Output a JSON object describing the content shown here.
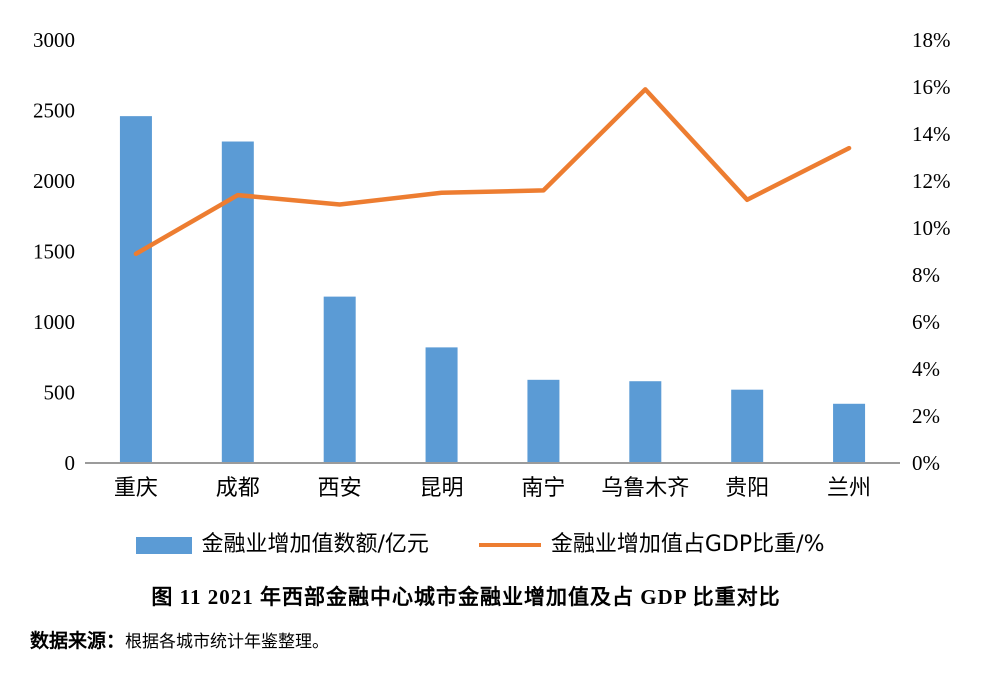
{
  "chart_data": {
    "type": "bar",
    "subtype": "bar+line-combo",
    "categories": [
      "重庆",
      "成都",
      "西安",
      "昆明",
      "南宁",
      "乌鲁木齐",
      "贵阳",
      "兰州"
    ],
    "series": [
      {
        "name": "金融业增加值数额/亿元",
        "kind": "bar",
        "axis": "left",
        "color": "#5B9BD5",
        "values": [
          2460,
          2280,
          1180,
          820,
          590,
          580,
          520,
          420
        ]
      },
      {
        "name": "金融业增加值占GDP比重/%",
        "kind": "line",
        "axis": "right",
        "color": "#ED7D31",
        "values": [
          8.9,
          11.4,
          11.0,
          11.5,
          11.6,
          15.9,
          11.2,
          13.4
        ]
      }
    ],
    "left_axis": {
      "min": 0,
      "max": 3000,
      "step": 500,
      "tick_labels": [
        "0",
        "500",
        "1000",
        "1500",
        "2000",
        "2500",
        "3000"
      ]
    },
    "right_axis": {
      "min": 0,
      "max": 18,
      "step": 2,
      "tick_labels": [
        "0%",
        "2%",
        "4%",
        "6%",
        "8%",
        "10%",
        "12%",
        "14%",
        "16%",
        "18%"
      ]
    },
    "grid": false,
    "legend_position": "bottom",
    "title": "图 11 2021 年西部金融中心城市金融业增加值及占 GDP 比重对比"
  },
  "legend": {
    "bar_label": "金融业增加值数额/亿元",
    "line_label": "金融业增加值占GDP比重/%"
  },
  "caption": {
    "figure_title": "图 11 2021 年西部金融中心城市金融业增加值及占 GDP 比重对比",
    "source_label": "数据来源：",
    "source_text": "根据各城市统计年鉴整理。"
  },
  "colors": {
    "bar": "#5B9BD5",
    "line": "#ED7D31",
    "axis_line": "#9b9b9b",
    "text": "#000000",
    "background": "#FFFFFF"
  }
}
